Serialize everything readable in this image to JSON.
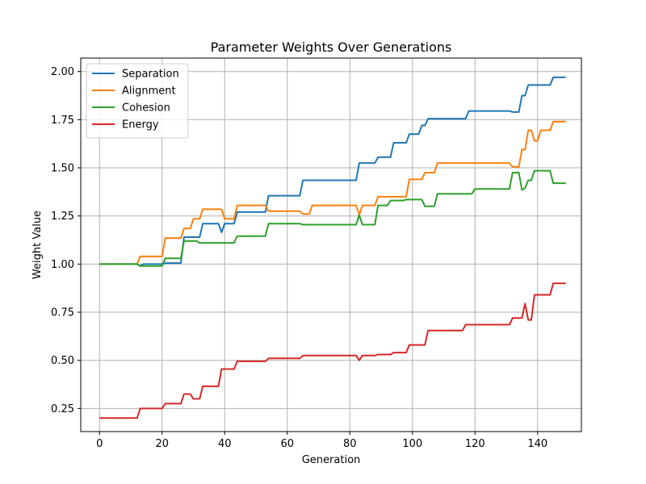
{
  "chart_data": {
    "type": "line",
    "title": "Parameter Weights Over Generations",
    "xlabel": "Generation",
    "ylabel": "Weight Value",
    "xlim": [
      -6,
      154
    ],
    "ylim": [
      0.13,
      2.07
    ],
    "xticks": [
      0,
      20,
      40,
      60,
      80,
      100,
      120,
      140
    ],
    "yticks": [
      0.25,
      0.5,
      0.75,
      1.0,
      1.25,
      1.5,
      1.75,
      2.0
    ],
    "ytick_labels": [
      "0.25",
      "0.50",
      "0.75",
      "1.00",
      "1.25",
      "1.50",
      "1.75",
      "2.00"
    ],
    "grid": true,
    "legend_position": "upper-left",
    "series": [
      {
        "name": "Separation",
        "color": "#1f77b4",
        "points": [
          [
            0,
            1.0
          ],
          [
            12,
            1.0
          ],
          [
            13,
            0.99
          ],
          [
            14,
            1.0
          ],
          [
            20,
            1.0
          ],
          [
            21,
            1.005
          ],
          [
            26,
            1.005
          ],
          [
            27,
            1.14
          ],
          [
            32,
            1.14
          ],
          [
            33,
            1.21
          ],
          [
            38,
            1.21
          ],
          [
            39,
            1.165
          ],
          [
            40,
            1.21
          ],
          [
            43,
            1.21
          ],
          [
            44,
            1.27
          ],
          [
            53,
            1.27
          ],
          [
            54,
            1.355
          ],
          [
            64,
            1.355
          ],
          [
            65,
            1.435
          ],
          [
            82,
            1.435
          ],
          [
            83,
            1.525
          ],
          [
            88,
            1.525
          ],
          [
            89,
            1.555
          ],
          [
            93,
            1.555
          ],
          [
            94,
            1.63
          ],
          [
            98,
            1.63
          ],
          [
            99,
            1.675
          ],
          [
            102,
            1.675
          ],
          [
            103,
            1.72
          ],
          [
            104,
            1.72
          ],
          [
            105,
            1.755
          ],
          [
            117,
            1.755
          ],
          [
            118,
            1.795
          ],
          [
            131,
            1.795
          ],
          [
            132,
            1.79
          ],
          [
            134,
            1.79
          ],
          [
            135,
            1.875
          ],
          [
            136,
            1.875
          ],
          [
            137,
            1.93
          ],
          [
            144,
            1.93
          ],
          [
            145,
            1.97
          ],
          [
            149,
            1.97
          ]
        ]
      },
      {
        "name": "Alignment",
        "color": "#ff7f0e",
        "points": [
          [
            0,
            1.0
          ],
          [
            12,
            1.0
          ],
          [
            13,
            1.04
          ],
          [
            20,
            1.04
          ],
          [
            21,
            1.135
          ],
          [
            26,
            1.135
          ],
          [
            27,
            1.185
          ],
          [
            29,
            1.185
          ],
          [
            30,
            1.235
          ],
          [
            32,
            1.235
          ],
          [
            33,
            1.285
          ],
          [
            39,
            1.285
          ],
          [
            40,
            1.235
          ],
          [
            43,
            1.235
          ],
          [
            44,
            1.305
          ],
          [
            53,
            1.305
          ],
          [
            54,
            1.275
          ],
          [
            64,
            1.275
          ],
          [
            65,
            1.26
          ],
          [
            67,
            1.26
          ],
          [
            68,
            1.305
          ],
          [
            82,
            1.305
          ],
          [
            83,
            1.255
          ],
          [
            84,
            1.305
          ],
          [
            88,
            1.305
          ],
          [
            89,
            1.35
          ],
          [
            98,
            1.35
          ],
          [
            99,
            1.44
          ],
          [
            103,
            1.44
          ],
          [
            104,
            1.475
          ],
          [
            107,
            1.475
          ],
          [
            108,
            1.525
          ],
          [
            131,
            1.525
          ],
          [
            132,
            1.505
          ],
          [
            134,
            1.505
          ],
          [
            135,
            1.595
          ],
          [
            136,
            1.595
          ],
          [
            137,
            1.695
          ],
          [
            138,
            1.695
          ],
          [
            139,
            1.64
          ],
          [
            140,
            1.64
          ],
          [
            141,
            1.695
          ],
          [
            144,
            1.695
          ],
          [
            145,
            1.74
          ],
          [
            149,
            1.74
          ]
        ]
      },
      {
        "name": "Cohesion",
        "color": "#2ca02c",
        "points": [
          [
            0,
            1.0
          ],
          [
            12,
            1.0
          ],
          [
            13,
            0.99
          ],
          [
            20,
            0.99
          ],
          [
            21,
            1.03
          ],
          [
            26,
            1.03
          ],
          [
            27,
            1.12
          ],
          [
            31,
            1.12
          ],
          [
            32,
            1.11
          ],
          [
            43,
            1.11
          ],
          [
            44,
            1.145
          ],
          [
            53,
            1.145
          ],
          [
            54,
            1.21
          ],
          [
            64,
            1.21
          ],
          [
            65,
            1.205
          ],
          [
            82,
            1.205
          ],
          [
            83,
            1.255
          ],
          [
            84,
            1.205
          ],
          [
            88,
            1.205
          ],
          [
            89,
            1.305
          ],
          [
            92,
            1.305
          ],
          [
            93,
            1.33
          ],
          [
            97,
            1.33
          ],
          [
            98,
            1.335
          ],
          [
            103,
            1.335
          ],
          [
            104,
            1.3
          ],
          [
            107,
            1.3
          ],
          [
            108,
            1.365
          ],
          [
            119,
            1.365
          ],
          [
            120,
            1.39
          ],
          [
            131,
            1.39
          ],
          [
            132,
            1.475
          ],
          [
            134,
            1.475
          ],
          [
            135,
            1.385
          ],
          [
            136,
            1.395
          ],
          [
            137,
            1.435
          ],
          [
            138,
            1.435
          ],
          [
            139,
            1.485
          ],
          [
            144,
            1.485
          ],
          [
            145,
            1.42
          ],
          [
            149,
            1.42
          ]
        ]
      },
      {
        "name": "Energy",
        "color": "#d62728",
        "points": [
          [
            0,
            0.2
          ],
          [
            12,
            0.2
          ],
          [
            13,
            0.25
          ],
          [
            20,
            0.25
          ],
          [
            21,
            0.275
          ],
          [
            26,
            0.275
          ],
          [
            27,
            0.325
          ],
          [
            29,
            0.325
          ],
          [
            30,
            0.3
          ],
          [
            32,
            0.3
          ],
          [
            33,
            0.365
          ],
          [
            38,
            0.365
          ],
          [
            39,
            0.455
          ],
          [
            43,
            0.455
          ],
          [
            44,
            0.495
          ],
          [
            53,
            0.495
          ],
          [
            54,
            0.51
          ],
          [
            64,
            0.51
          ],
          [
            65,
            0.525
          ],
          [
            82,
            0.525
          ],
          [
            83,
            0.5
          ],
          [
            84,
            0.525
          ],
          [
            88,
            0.525
          ],
          [
            89,
            0.53
          ],
          [
            93,
            0.53
          ],
          [
            94,
            0.54
          ],
          [
            98,
            0.54
          ],
          [
            99,
            0.58
          ],
          [
            104,
            0.58
          ],
          [
            105,
            0.655
          ],
          [
            116,
            0.655
          ],
          [
            117,
            0.685
          ],
          [
            131,
            0.685
          ],
          [
            132,
            0.72
          ],
          [
            135,
            0.72
          ],
          [
            136,
            0.795
          ],
          [
            137,
            0.71
          ],
          [
            138,
            0.71
          ],
          [
            139,
            0.84
          ],
          [
            144,
            0.84
          ],
          [
            145,
            0.9
          ],
          [
            149,
            0.9
          ]
        ]
      }
    ]
  }
}
